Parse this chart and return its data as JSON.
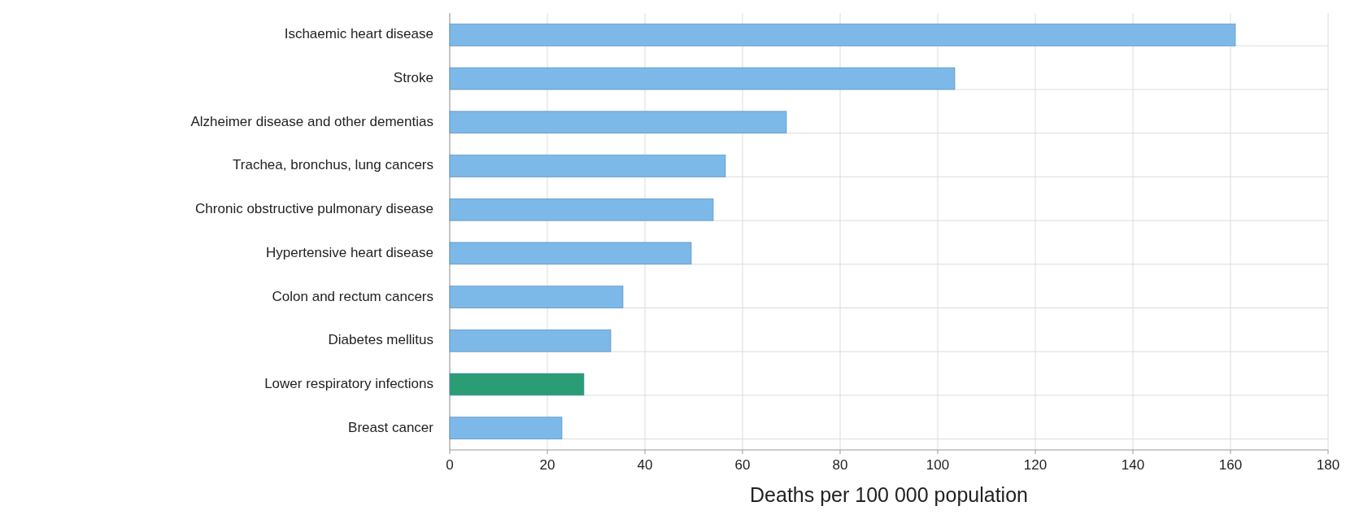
{
  "chart_data": {
    "type": "bar",
    "orientation": "horizontal",
    "xlabel": "Deaths per 100 000 population",
    "categories": [
      "Ischaemic heart disease",
      "Stroke",
      "Alzheimer disease and other dementias",
      "Trachea, bronchus, lung cancers",
      "Chronic obstructive pulmonary disease",
      "Hypertensive heart disease",
      "Colon and rectum cancers",
      "Diabetes mellitus",
      "Lower respiratory infections",
      "Breast cancer"
    ],
    "values": [
      161,
      103.5,
      69,
      56.5,
      54,
      49.5,
      35.5,
      33,
      27.5,
      23
    ],
    "colors": [
      "#7db9e8",
      "#7db9e8",
      "#7db9e8",
      "#7db9e8",
      "#7db9e8",
      "#7db9e8",
      "#7db9e8",
      "#7db9e8",
      "#2a9d74",
      "#7db9e8"
    ],
    "xlim": [
      0,
      180
    ],
    "xticks": [
      0,
      20,
      40,
      60,
      80,
      100,
      120,
      140,
      160,
      180
    ],
    "grid": true
  }
}
